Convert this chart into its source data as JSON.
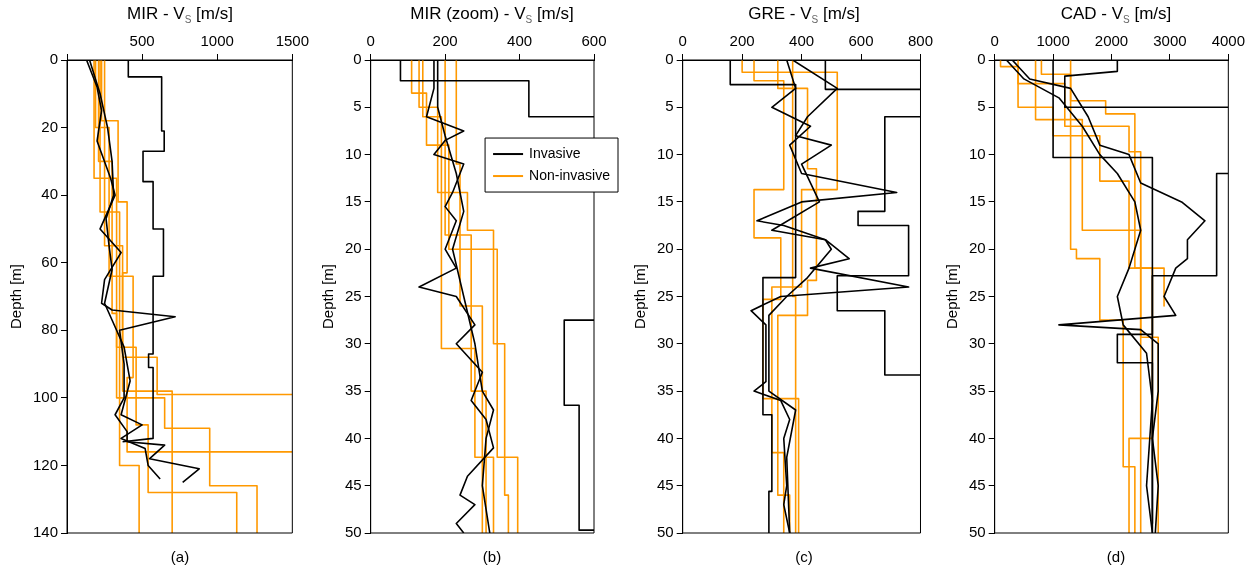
{
  "chart_data": [
    {
      "type": "line",
      "title": "MIR - V$_{S}$ [m/s]",
      "xlabel": "(a)",
      "ylabel": "Depth [m]",
      "xlim": [
        0,
        1500
      ],
      "xticks": [
        {
          "value": 0,
          "label": null
        },
        500,
        1000,
        1500
      ],
      "ylim": [
        140,
        0
      ],
      "yticks": [
        0,
        20,
        40,
        60,
        80,
        100,
        120,
        140
      ],
      "grid": false,
      "marker": "none",
      "series": [
        {
          "color": "#000000",
          "x": [
            408,
            408,
            630,
            630,
            647,
            647,
            506,
            506,
            573,
            573,
            642,
            642,
            573,
            573,
            543,
            543,
            573,
            573,
            370
          ],
          "values": [
            0,
            5,
            5,
            21,
            21,
            27,
            27,
            36,
            36,
            50,
            50,
            64,
            64,
            87,
            87,
            91,
            91,
            112,
            113
          ]
        },
        {
          "color": "#000000",
          "x": [
            130,
            200,
            230,
            200,
            290,
            320,
            220,
            360,
            250,
            230,
            300,
            720,
            350,
            380,
            380,
            320,
            400,
            400,
            650,
            550,
            880,
            770
          ],
          "values": [
            0,
            8,
            15,
            24,
            35,
            40,
            50,
            57,
            65,
            72,
            74,
            76,
            80,
            90,
            100,
            105,
            110,
            113,
            114,
            118,
            121,
            125
          ]
        },
        {
          "color": "#000000",
          "x": [
            150,
            220,
            270,
            300,
            310,
            260,
            280,
            300,
            250,
            330,
            380,
            420,
            360,
            500,
            360,
            520,
            540,
            620
          ],
          "values": [
            0,
            10,
            20,
            30,
            40,
            47,
            55,
            62,
            72,
            80,
            85,
            95,
            105,
            108,
            112,
            115,
            120,
            124
          ]
        },
        {
          "color": "#ff9900",
          "x": [
            230,
            230,
            340,
            340,
            400,
            400,
            370,
            370,
            600,
            600,
            1500
          ],
          "values": [
            0,
            18,
            18,
            42,
            42,
            63,
            63,
            88,
            88,
            99,
            99
          ]
        },
        {
          "color": "#ff9900",
          "x": [
            210,
            210,
            300,
            300,
            330,
            330,
            650,
            650,
            950,
            950,
            1265,
            1265
          ],
          "values": [
            0,
            30,
            30,
            75,
            75,
            100,
            100,
            109,
            109,
            126,
            126,
            140
          ]
        },
        {
          "color": "#ff9900",
          "x": [
            190,
            190,
            280,
            280,
            440,
            440,
            400,
            400,
            1500
          ],
          "values": [
            0,
            20,
            20,
            64,
            64,
            94,
            94,
            116,
            116
          ]
        },
        {
          "color": "#ff9900",
          "x": [
            180,
            180,
            330,
            330,
            460,
            460,
            540,
            540,
            1130,
            1130
          ],
          "values": [
            0,
            35,
            35,
            85,
            85,
            108,
            108,
            128,
            128,
            140
          ]
        },
        {
          "color": "#ff9900",
          "x": [
            250,
            250,
            370,
            370,
            700,
            700
          ],
          "values": [
            0,
            55,
            55,
            98,
            98,
            140
          ]
        },
        {
          "color": "#ff9900",
          "x": [
            220,
            220,
            350,
            350,
            480,
            480
          ],
          "values": [
            0,
            45,
            45,
            120,
            120,
            140
          ]
        }
      ]
    },
    {
      "type": "line",
      "title": "MIR (zoom) - V$_{S}$ [m/s]",
      "xlabel": "(b)",
      "ylabel": "Depth [m]",
      "xlim": [
        0,
        600
      ],
      "xticks": [
        0,
        200,
        400,
        600
      ],
      "ylim": [
        50,
        0
      ],
      "yticks": [
        0,
        5,
        10,
        15,
        20,
        25,
        30,
        35,
        40,
        45,
        50
      ],
      "grid": false,
      "marker": "none",
      "legend": "top right",
      "series": [
        {
          "name": "Invasive",
          "color": "#000000",
          "x": [
            170,
            170,
            150,
            250,
            200,
            170,
            250,
            220,
            200,
            230,
            200,
            230,
            130,
            230,
            280,
            230,
            300,
            270,
            310,
            330,
            260,
            240,
            280,
            230,
            250
          ],
          "values": [
            0,
            3,
            6,
            7.5,
            8.5,
            10,
            11,
            14,
            15.5,
            17,
            20,
            22,
            24,
            25,
            28,
            30,
            33,
            36,
            38,
            41,
            44,
            46,
            47,
            49,
            50
          ]
        },
        {
          "color": "#000000",
          "x": [
            80,
            80,
            425,
            425,
            600
          ],
          "values": [
            0,
            2.2,
            2.2,
            6,
            6
          ]
        },
        {
          "color": "#000000",
          "x": [
            600,
            520,
            520,
            560,
            560,
            600
          ],
          "values": [
            27.5,
            27.5,
            36.5,
            36.5,
            49.7,
            49.7
          ]
        },
        {
          "color": "#000000",
          "x": [
            180,
            180,
            200,
            230,
            250,
            220,
            250,
            280,
            300,
            330,
            310,
            300,
            320
          ],
          "values": [
            0,
            5,
            8,
            12,
            16,
            20,
            25,
            30,
            35,
            37,
            40,
            45,
            50
          ]
        },
        {
          "name": "Non-invasive",
          "color": "#ff9900",
          "x": [
            110,
            110,
            150,
            150,
            210,
            210,
            340,
            340,
            395,
            395
          ],
          "values": [
            0,
            3.5,
            3.5,
            9,
            9,
            20,
            20,
            42,
            42,
            50
          ]
        },
        {
          "color": "#ff9900",
          "x": [
            130,
            130,
            180,
            180,
            260,
            260,
            330,
            330,
            360,
            360,
            370,
            370
          ],
          "values": [
            0,
            5,
            5,
            14,
            14,
            18,
            18,
            30,
            30,
            46,
            46,
            50
          ]
        },
        {
          "color": "#ff9900",
          "x": [
            230,
            230,
            240,
            240,
            300,
            300
          ],
          "values": [
            0,
            11,
            11,
            26,
            26,
            50
          ]
        },
        {
          "color": "#ff9900",
          "x": [
            200,
            200,
            270,
            270,
            310,
            310
          ],
          "values": [
            0,
            18.5,
            18.5,
            35,
            35,
            50
          ]
        },
        {
          "color": "#ff9900",
          "x": [
            140,
            140,
            190,
            190,
            280,
            280,
            330,
            330
          ],
          "values": [
            0,
            6,
            6,
            30.5,
            30.5,
            42,
            42,
            50
          ]
        }
      ]
    },
    {
      "type": "line",
      "title": "GRE - V$_{S}$ [m/s]",
      "xlabel": "(c)",
      "ylabel": "Depth [m]",
      "xlim": [
        0,
        800
      ],
      "xticks": [
        0,
        200,
        400,
        600,
        800
      ],
      "ylim": [
        50,
        0
      ],
      "yticks": [
        0,
        5,
        10,
        15,
        20,
        25,
        30,
        35,
        40,
        45,
        50
      ],
      "grid": false,
      "marker": "none",
      "series": [
        {
          "color": "#000000",
          "x": [
            480,
            480,
            800
          ],
          "values": [
            0,
            3.1,
            3.1
          ]
        },
        {
          "color": "#000000",
          "x": [
            800,
            680,
            680,
            590,
            590,
            760,
            760,
            520,
            520,
            680,
            680,
            800
          ],
          "values": [
            6,
            6,
            16,
            16,
            17.5,
            17.5,
            22.8,
            22.8,
            26.5,
            26.5,
            33.3,
            33.3
          ]
        },
        {
          "color": "#000000",
          "x": [
            160,
            160,
            380,
            380,
            270,
            270,
            300,
            300,
            290,
            290
          ],
          "values": [
            0,
            2.6,
            2.6,
            23,
            23,
            37.5,
            37.5,
            45.6,
            45.6,
            50
          ]
        },
        {
          "color": "#000000",
          "x": [
            350,
            380,
            300,
            430,
            360,
            400,
            720,
            400,
            250,
            340,
            480,
            520,
            560,
            430,
            760,
            330,
            230,
            280,
            280,
            240,
            330,
            360,
            340,
            350,
            340,
            360
          ],
          "values": [
            0,
            3,
            5,
            7,
            9,
            12,
            14,
            15,
            17,
            17.5,
            19,
            20,
            21,
            22,
            24,
            25,
            26.5,
            28,
            34,
            35,
            36,
            38,
            40,
            45,
            47,
            50
          ]
        },
        {
          "color": "#000000",
          "x": [
            370,
            520,
            420,
            380,
            500,
            400,
            460,
            300,
            480,
            500,
            420,
            350,
            290,
            290,
            380,
            350,
            360
          ],
          "values": [
            0,
            3,
            6,
            8,
            9,
            11,
            15,
            18,
            19,
            20,
            23,
            25,
            27,
            35,
            37,
            42,
            50
          ]
        },
        {
          "color": "#ff9900",
          "x": [
            200,
            200,
            520,
            520,
            400,
            400,
            300,
            300,
            340,
            340
          ],
          "values": [
            0,
            1.3,
            1.3,
            13.7,
            13.7,
            24,
            24,
            41.5,
            41.5,
            50
          ]
        },
        {
          "color": "#ff9900",
          "x": [
            240,
            240,
            340,
            340,
            240,
            240,
            330,
            330,
            270,
            270,
            390,
            390
          ],
          "values": [
            0,
            2.2,
            2.2,
            13.7,
            13.7,
            18.8,
            18.8,
            25.3,
            25.3,
            35.8,
            35.8,
            50
          ]
        },
        {
          "color": "#ff9900",
          "x": [
            320,
            320,
            420,
            420,
            450,
            450,
            420,
            420,
            320,
            320,
            360,
            360
          ],
          "values": [
            0,
            3,
            3,
            11.5,
            11.5,
            23.3,
            23.3,
            27,
            27,
            46,
            46,
            50
          ]
        },
        {
          "color": "#ff9900",
          "x": [
            370,
            370,
            380,
            380
          ],
          "values": [
            0,
            25,
            25,
            50
          ]
        }
      ]
    },
    {
      "type": "line",
      "title": "CAD - V$_{S}$ [m/s]",
      "xlabel": "(d)",
      "ylabel": "Depth [m]",
      "xlim": [
        0,
        4000
      ],
      "xticks": [
        0,
        1000,
        2000,
        3000,
        4000
      ],
      "ylim": [
        50,
        0
      ],
      "yticks": [
        0,
        5,
        10,
        15,
        20,
        25,
        30,
        35,
        40,
        45,
        50
      ],
      "grid": false,
      "marker": "none",
      "series": [
        {
          "color": "#000000",
          "x": [
            2100,
            2100,
            1200,
            1200,
            4000
          ],
          "values": [
            0,
            1.2,
            1.7,
            5,
            5
          ]
        },
        {
          "color": "#000000",
          "x": [
            4000,
            3800,
            3800,
            2700,
            2700
          ],
          "values": [
            12,
            12,
            22.8,
            22.8,
            50
          ]
        },
        {
          "color": "#000000",
          "x": [
            1000,
            1000,
            2700,
            2700,
            2100,
            2100,
            2700,
            2700
          ],
          "values": [
            0,
            10.3,
            10.3,
            29,
            29,
            32,
            32,
            49
          ]
        },
        {
          "color": "#000000",
          "x": [
            300,
            600,
            1300,
            1600,
            1800,
            2300,
            2500,
            3200,
            3600,
            3300,
            3300,
            3100,
            2900,
            3100,
            1100,
            2500,
            2800,
            2800,
            2700,
            2800,
            2750
          ],
          "values": [
            0,
            2,
            3,
            6,
            9,
            10,
            13,
            15,
            17,
            19,
            21,
            22,
            25,
            27,
            28,
            28.5,
            30,
            35,
            40,
            45,
            50
          ]
        },
        {
          "color": "#000000",
          "x": [
            200,
            500,
            1100,
            1500,
            1800,
            2100,
            2400,
            2500,
            2300,
            2100,
            2200,
            2600,
            2700,
            2600,
            2700
          ],
          "values": [
            0,
            2,
            4,
            7,
            10,
            12,
            15,
            18,
            22,
            25,
            28,
            31,
            36,
            45,
            50
          ]
        },
        {
          "color": "#ff9900",
          "x": [
            100,
            100,
            400,
            400,
            1200,
            1200,
            2300,
            2300,
            2500,
            2500
          ],
          "values": [
            0,
            0.7,
            0.7,
            2.5,
            2.5,
            7,
            7,
            9.7,
            9.7,
            50
          ]
        },
        {
          "color": "#ff9900",
          "x": [
            800,
            800,
            1300,
            1300,
            1400,
            1400,
            1800,
            1800,
            2200,
            2200,
            2400,
            2400
          ],
          "values": [
            0,
            1.5,
            1.5,
            20,
            20,
            21,
            21,
            27.5,
            27.5,
            43,
            43,
            50
          ]
        },
        {
          "color": "#ff9900",
          "x": [
            400,
            400,
            1000,
            1000,
            1800,
            1800,
            2300,
            2300,
            2700,
            2700,
            2300,
            2300
          ],
          "values": [
            0,
            5,
            5,
            8,
            8,
            12.8,
            12.8,
            22,
            22,
            40,
            40,
            50
          ]
        },
        {
          "color": "#ff9900",
          "x": [
            700,
            700,
            1500,
            1500,
            2500,
            2500,
            2800,
            2800
          ],
          "values": [
            0,
            6.3,
            6.3,
            18,
            18,
            29.3,
            29.3,
            50
          ]
        },
        {
          "color": "#ff9900",
          "x": [
            1300,
            1300,
            1900,
            1900,
            2400,
            2400,
            2900,
            2900
          ],
          "values": [
            0,
            4.3,
            4.3,
            5.7,
            5.7,
            22,
            22,
            26
          ]
        }
      ]
    }
  ]
}
